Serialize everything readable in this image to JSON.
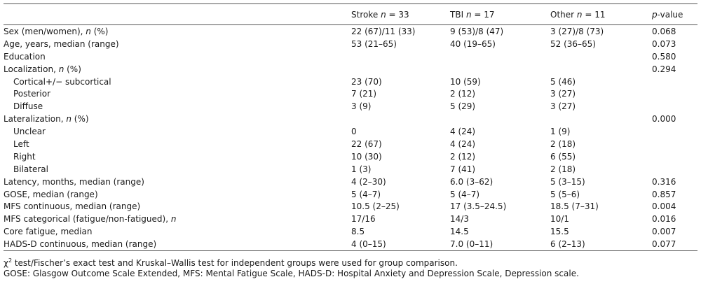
{
  "table": {
    "header": {
      "col0": "",
      "col1_label": "Stroke",
      "col1_n": "n",
      "col1_value": " = 33",
      "col2_label": "TBI",
      "col2_n": "n",
      "col2_value": " = 17",
      "col3_label": "Other",
      "col3_n": "n",
      "col3_value": " = 11",
      "col4_italic": "p",
      "col4_rest": "-value"
    },
    "rows": [
      {
        "label": "Sex (men/women), ",
        "label_italic": "n",
        "label_tail": " (%)",
        "stroke": "22 (67)/11 (33)",
        "tbi": "9 (53)/8 (47)",
        "other": "3 (27)/8 (73)",
        "p": "0.068"
      },
      {
        "label": "Age, years, median (range)",
        "label_italic": "",
        "label_tail": "",
        "stroke": "53 (21–65)",
        "tbi": "40 (19–65)",
        "other": "52 (36–65)",
        "p": "0.073"
      },
      {
        "label": "Education",
        "label_italic": "",
        "label_tail": "",
        "stroke": "",
        "tbi": "",
        "other": "",
        "p": "0.580"
      },
      {
        "label": "Localization, ",
        "label_italic": "n",
        "label_tail": " (%)",
        "stroke": "",
        "tbi": "",
        "other": "",
        "p": "0.294"
      },
      {
        "label": "Cortical+/− subcortical",
        "label_italic": "",
        "label_tail": "",
        "stroke": "23 (70)",
        "tbi": "10 (59)",
        "other": "5 (46)",
        "p": ""
      },
      {
        "label": "Posterior",
        "label_italic": "",
        "label_tail": "",
        "stroke": "7 (21)",
        "tbi": "2 (12)",
        "other": "3 (27)",
        "p": ""
      },
      {
        "label": "Diffuse",
        "label_italic": "",
        "label_tail": "",
        "stroke": "3 (9)",
        "tbi": "5 (29)",
        "other": "3 (27)",
        "p": ""
      },
      {
        "label": "Lateralization, ",
        "label_italic": "n",
        "label_tail": " (%)",
        "stroke": "",
        "tbi": "",
        "other": "",
        "p": "0.000"
      },
      {
        "label": "Unclear",
        "label_italic": "",
        "label_tail": "",
        "stroke": "0",
        "tbi": "4 (24)",
        "other": "1 (9)",
        "p": ""
      },
      {
        "label": "Left",
        "label_italic": "",
        "label_tail": "",
        "stroke": "22 (67)",
        "tbi": "4 (24)",
        "other": "2 (18)",
        "p": ""
      },
      {
        "label": "Right",
        "label_italic": "",
        "label_tail": "",
        "stroke": "10 (30)",
        "tbi": "2 (12)",
        "other": "6 (55)",
        "p": ""
      },
      {
        "label": "Bilateral",
        "label_italic": "",
        "label_tail": "",
        "stroke": "1 (3)",
        "tbi": "7 (41)",
        "other": "2 (18)",
        "p": ""
      },
      {
        "label": "Latency, months, median (range)",
        "label_italic": "",
        "label_tail": "",
        "stroke": "4 (2–30)",
        "tbi": "6.0 (3–62)",
        "other": "5 (3–15)",
        "p": "0.316"
      },
      {
        "label": "GOSE, median (range)",
        "label_italic": "",
        "label_tail": "",
        "stroke": "5 (4–7)",
        "tbi": "5 (4–7)",
        "other": "5 (5–6)",
        "p": "0.857"
      },
      {
        "label": "MFS continuous, median (range)",
        "label_italic": "",
        "label_tail": "",
        "stroke": "10.5 (2–25)",
        "tbi": "17 (3.5–24.5)",
        "other": "18.5 (7–31)",
        "p": "0.004"
      },
      {
        "label": "MFS categorical (fatigue/non-fatigued), ",
        "label_italic": "n",
        "label_tail": "",
        "stroke": "17/16",
        "tbi": "14/3",
        "other": "10/1",
        "p": "0.016"
      },
      {
        "label": "Core fatigue, median",
        "label_italic": "",
        "label_tail": "",
        "stroke": "8.5",
        "tbi": "14.5",
        "other": "15.5",
        "p": "0.007"
      },
      {
        "label": "HADS-D continuous, median (range)",
        "label_italic": "",
        "label_tail": "",
        "stroke": "4 (0–15)",
        "tbi": "7.0 (0–11)",
        "other": "6 (2–13)",
        "p": "0.077"
      }
    ]
  },
  "notes": {
    "chi": "χ",
    "sup": "2",
    "line1_rest": " test/Fischer’s exact test and Kruskal–Wallis test for independent groups were used for group comparison.",
    "line2": "GOSE: Glasgow Outcome Scale Extended, MFS: Mental Fatigue Scale, HADS-D: Hospital Anxiety and Depression Scale, Depression scale."
  }
}
